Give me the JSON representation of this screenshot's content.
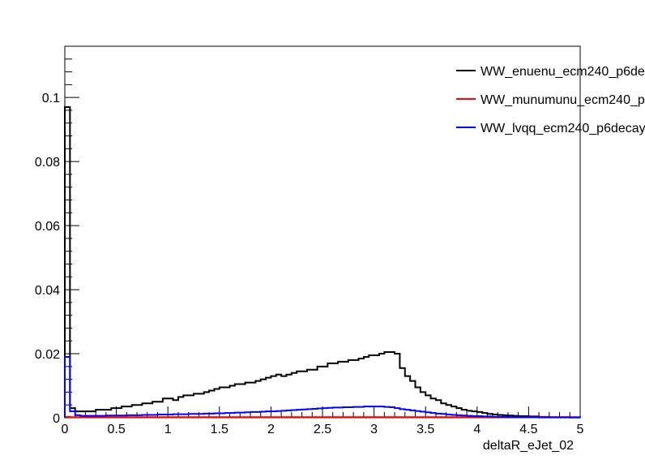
{
  "chart_data": {
    "type": "line",
    "title": "",
    "xlabel": "deltaR_eJet_02",
    "ylabel": "",
    "xlim": [
      0,
      5
    ],
    "ylim": [
      0,
      0.116
    ],
    "grid": false,
    "legend_position": "top-right",
    "x_tick_labels": [
      "0",
      "0.5",
      "1",
      "1.5",
      "2",
      "2.5",
      "3",
      "3.5",
      "4",
      "4.5",
      "5"
    ],
    "x_tick_values": [
      0,
      0.5,
      1,
      1.5,
      2,
      2.5,
      3,
      3.5,
      4,
      4.5,
      5
    ],
    "y_tick_labels": [
      "0",
      "0.02",
      "0.04",
      "0.06",
      "0.08",
      "0.1"
    ],
    "y_tick_values": [
      0,
      0.02,
      0.04,
      0.06,
      0.08,
      0.1
    ],
    "bin_width": 0.05,
    "series": [
      {
        "name": "WW_enuenu_ecm240_p6de",
        "color": "#000000",
        "x": [
          0,
          0.05,
          0.1,
          0.15,
          0.2,
          0.25,
          0.3,
          0.35,
          0.4,
          0.45,
          0.5,
          0.55,
          0.6,
          0.65,
          0.7,
          0.75,
          0.8,
          0.85,
          0.9,
          0.95,
          1,
          1.05,
          1.1,
          1.15,
          1.2,
          1.25,
          1.3,
          1.35,
          1.4,
          1.45,
          1.5,
          1.55,
          1.6,
          1.65,
          1.7,
          1.75,
          1.8,
          1.85,
          1.9,
          1.95,
          2,
          2.05,
          2.1,
          2.15,
          2.2,
          2.25,
          2.3,
          2.35,
          2.4,
          2.45,
          2.5,
          2.55,
          2.6,
          2.65,
          2.7,
          2.75,
          2.8,
          2.85,
          2.9,
          2.95,
          3,
          3.05,
          3.1,
          3.15,
          3.2,
          3.25,
          3.3,
          3.35,
          3.4,
          3.45,
          3.5,
          3.55,
          3.6,
          3.65,
          3.7,
          3.75,
          3.8,
          3.85,
          3.9,
          3.95,
          4,
          4.05,
          4.1,
          4.15,
          4.2,
          4.25,
          4.3,
          4.35,
          4.4,
          4.45,
          4.5,
          4.55,
          4.6,
          4.65,
          4.7,
          4.75,
          4.8,
          4.85,
          4.9,
          4.95
        ],
        "values": [
          0.097,
          0.003,
          0.002,
          0.002,
          0.002,
          0.002,
          0.0025,
          0.0025,
          0.0025,
          0.003,
          0.003,
          0.0035,
          0.0035,
          0.004,
          0.004,
          0.0045,
          0.0045,
          0.005,
          0.005,
          0.006,
          0.006,
          0.0055,
          0.0065,
          0.007,
          0.007,
          0.0075,
          0.0075,
          0.008,
          0.0085,
          0.009,
          0.0095,
          0.0095,
          0.01,
          0.0105,
          0.0105,
          0.011,
          0.011,
          0.0115,
          0.012,
          0.0125,
          0.013,
          0.0135,
          0.013,
          0.0135,
          0.014,
          0.0145,
          0.0145,
          0.015,
          0.015,
          0.016,
          0.016,
          0.017,
          0.017,
          0.0175,
          0.0175,
          0.018,
          0.018,
          0.0185,
          0.019,
          0.0195,
          0.0195,
          0.02,
          0.0205,
          0.0205,
          0.02,
          0.0155,
          0.013,
          0.0115,
          0.0095,
          0.008,
          0.007,
          0.006,
          0.0055,
          0.0045,
          0.004,
          0.0035,
          0.003,
          0.0025,
          0.0022,
          0.002,
          0.0018,
          0.0015,
          0.0012,
          0.001,
          0.0009,
          0.0008,
          0.0007,
          0.0006,
          0.0005,
          0.0005,
          0.0004,
          0.0004,
          0.0003,
          0.0003,
          0.0002,
          0.0002,
          0.0002,
          0.0002,
          0.0001,
          0.0001
        ]
      },
      {
        "name": "WW_munumunu_ecm240_p",
        "color": "#ff0000",
        "x": [
          0,
          0.05,
          0.1,
          0.15,
          0.2,
          0.25,
          0.3,
          0.35,
          0.4,
          0.45,
          0.5,
          0.55,
          0.6,
          0.65,
          0.7,
          0.75,
          0.8,
          0.85,
          0.9,
          0.95,
          1,
          1.05,
          1.1,
          1.15,
          1.2,
          1.25,
          1.3,
          1.35,
          1.4,
          1.45,
          1.5,
          1.55,
          1.6,
          1.65,
          1.7,
          1.75,
          1.8,
          1.85,
          1.9,
          1.95,
          2,
          2.05,
          2.1,
          2.15,
          2.2,
          2.25,
          2.3,
          2.35,
          2.4,
          2.45,
          2.5,
          2.55,
          2.6,
          2.65,
          2.7,
          2.75,
          2.8,
          2.85,
          2.9,
          2.95,
          3,
          3.05,
          3.1,
          3.15,
          3.2,
          3.25,
          3.3,
          3.35,
          3.4,
          3.45,
          3.5,
          3.55,
          3.6,
          3.65,
          3.7,
          3.75,
          3.8,
          3.85,
          3.9,
          3.95,
          4,
          4.05,
          4.1,
          4.15,
          4.2,
          4.25,
          4.3,
          4.35,
          4.4,
          4.45,
          4.5,
          4.55,
          4.6,
          4.65,
          4.7,
          4.75,
          4.8,
          4.85,
          4.9,
          4.95
        ],
        "values": [
          0.0003,
          0.0002,
          0.0002,
          0.0002,
          0.0002,
          0.0002,
          0.0002,
          0.0002,
          0.0002,
          0.0002,
          0.0002,
          0.0002,
          0.0002,
          0.0002,
          0.0002,
          0.0002,
          0.0002,
          0.0002,
          0.0002,
          0.0002,
          0.0002,
          0.0002,
          0.0002,
          0.0002,
          0.0002,
          0.0002,
          0.0002,
          0.0002,
          0.0002,
          0.0002,
          0.0002,
          0.0002,
          0.0002,
          0.0002,
          0.0002,
          0.0002,
          0.0002,
          0.0002,
          0.0002,
          0.0002,
          0.0002,
          0.0002,
          0.0002,
          0.0002,
          0.0002,
          0.0002,
          0.0002,
          0.0002,
          0.0002,
          0.0002,
          0.0002,
          0.0002,
          0.0002,
          0.0002,
          0.0002,
          0.0002,
          0.0002,
          0.0002,
          0.0002,
          0.0002,
          0.0002,
          0.0002,
          0.0002,
          0.0002,
          0.0002,
          0.0002,
          0.0002,
          0.0002,
          0.0002,
          0.0002,
          0.0002,
          0.0002,
          0.0002,
          0.0002,
          0.0002,
          0.0002,
          0.0002,
          0.0002,
          0.0002,
          0.0002,
          0.0002,
          0.0002,
          0.0002,
          0.0002,
          0.0002,
          0.0002,
          0.0002,
          0.0002,
          0.0002,
          0.0002,
          0.0002,
          0.0002,
          0.0002,
          0.0002,
          0.0002,
          0.0002,
          0.0002,
          0.0002,
          0.0002,
          0.0002
        ]
      },
      {
        "name": "WW_lvqq_ecm240_p6decay",
        "color": "#0000ff",
        "x": [
          0,
          0.05,
          0.1,
          0.15,
          0.2,
          0.25,
          0.3,
          0.35,
          0.4,
          0.45,
          0.5,
          0.55,
          0.6,
          0.65,
          0.7,
          0.75,
          0.8,
          0.85,
          0.9,
          0.95,
          1,
          1.05,
          1.1,
          1.15,
          1.2,
          1.25,
          1.3,
          1.35,
          1.4,
          1.45,
          1.5,
          1.55,
          1.6,
          1.65,
          1.7,
          1.75,
          1.8,
          1.85,
          1.9,
          1.95,
          2,
          2.05,
          2.1,
          2.15,
          2.2,
          2.25,
          2.3,
          2.35,
          2.4,
          2.45,
          2.5,
          2.55,
          2.6,
          2.65,
          2.7,
          2.75,
          2.8,
          2.85,
          2.9,
          2.95,
          3,
          3.05,
          3.1,
          3.15,
          3.2,
          3.25,
          3.3,
          3.35,
          3.4,
          3.45,
          3.5,
          3.55,
          3.6,
          3.65,
          3.7,
          3.75,
          3.8,
          3.85,
          3.9,
          3.95,
          4,
          4.05,
          4.1,
          4.15,
          4.2,
          4.25,
          4.3,
          4.35,
          4.4,
          4.45,
          4.5,
          4.55,
          4.6,
          4.65,
          4.7,
          4.75,
          4.8,
          4.85,
          4.9,
          4.95
        ],
        "values": [
          0.019,
          0.002,
          0.0008,
          0.0006,
          0.0006,
          0.0006,
          0.0006,
          0.0006,
          0.0007,
          0.0007,
          0.0007,
          0.0007,
          0.0008,
          0.0008,
          0.0008,
          0.0009,
          0.0009,
          0.0009,
          0.001,
          0.001,
          0.001,
          0.0011,
          0.0011,
          0.0011,
          0.0012,
          0.0012,
          0.0012,
          0.0013,
          0.0013,
          0.0014,
          0.0014,
          0.0015,
          0.0015,
          0.0016,
          0.0016,
          0.0017,
          0.0018,
          0.0018,
          0.0019,
          0.002,
          0.002,
          0.0021,
          0.0022,
          0.0023,
          0.0024,
          0.0025,
          0.0026,
          0.0027,
          0.0028,
          0.0029,
          0.003,
          0.0031,
          0.0032,
          0.0032,
          0.0033,
          0.0033,
          0.0034,
          0.0034,
          0.0035,
          0.0035,
          0.0035,
          0.0035,
          0.0034,
          0.0033,
          0.003,
          0.0027,
          0.0025,
          0.0023,
          0.0021,
          0.0019,
          0.0017,
          0.0015,
          0.0013,
          0.0012,
          0.001,
          0.0009,
          0.0008,
          0.0007,
          0.0006,
          0.0005,
          0.0005,
          0.0004,
          0.0004,
          0.0003,
          0.0003,
          0.0003,
          0.0002,
          0.0002,
          0.0002,
          0.0002,
          0.0002,
          0.0002,
          0.0001,
          0.0001,
          0.0001,
          0.0001,
          0.0001,
          0.0001,
          0.0001,
          0.0001
        ]
      }
    ]
  }
}
